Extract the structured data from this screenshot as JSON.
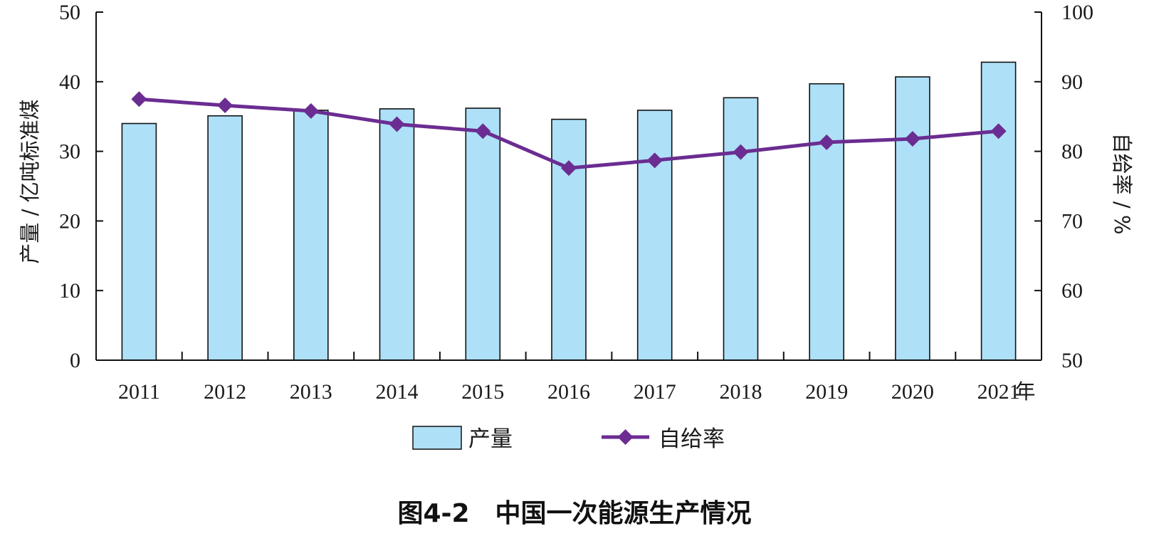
{
  "chart_data": {
    "type": "bar",
    "caption": "图4-2　中国一次能源生产情况",
    "categories": [
      "2011",
      "2012",
      "2013",
      "2014",
      "2015",
      "2016",
      "2017",
      "2018",
      "2019",
      "2020",
      "2021"
    ],
    "x_unit": "年",
    "series": [
      {
        "name": "产量",
        "type": "bar",
        "axis": "left",
        "values": [
          34.0,
          35.1,
          35.9,
          36.1,
          36.2,
          34.6,
          35.9,
          37.7,
          39.7,
          40.7,
          42.8
        ]
      },
      {
        "name": "自给率",
        "type": "line",
        "axis": "right",
        "values": [
          87.5,
          86.6,
          85.8,
          83.9,
          82.9,
          77.6,
          78.7,
          79.9,
          81.3,
          81.8,
          82.9
        ]
      }
    ],
    "ylabel": "产量 / 亿吨标准煤",
    "ylim": [
      0,
      50
    ],
    "yticks": [
      "0",
      "10",
      "20",
      "30",
      "40",
      "50"
    ],
    "y2label": "自给率 / %",
    "y2lim": [
      50,
      100
    ],
    "y2ticks": [
      "50",
      "60",
      "70",
      "80",
      "90",
      "100"
    ],
    "legend_position": "bottom",
    "grid": false,
    "colors": {
      "bar_fill": "#aee0f8",
      "bar_stroke": "#111111",
      "line": "#6b2d91",
      "axis": "#111111"
    }
  }
}
